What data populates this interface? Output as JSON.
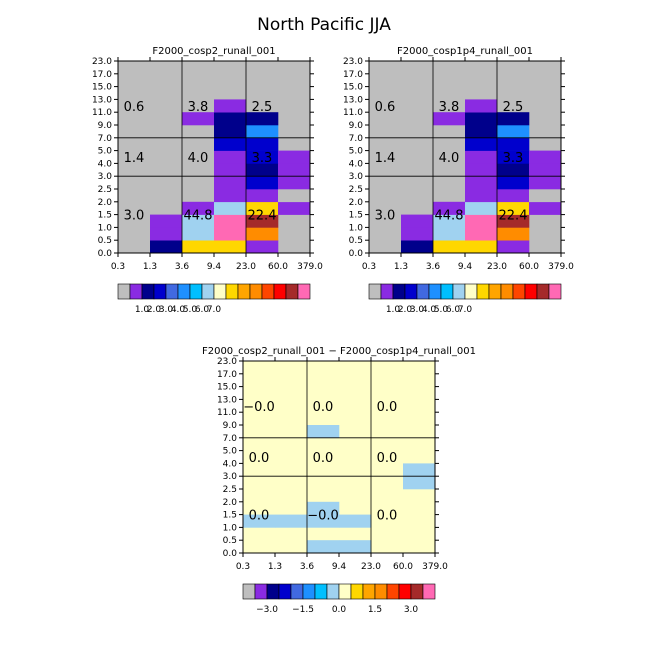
{
  "title": "North Pacific JJA",
  "x_ticks": [
    "0.3",
    "1.3",
    "3.6",
    "9.4",
    "23.0",
    "60.0",
    "379.0"
  ],
  "y_ticks": [
    "0.0",
    "0.5",
    "1.0",
    "1.5",
    "2.0",
    "2.5",
    "3.0",
    "4.0",
    "5.0",
    "7.0",
    "9.0",
    "11.0",
    "13.0",
    "15.0",
    "17.0",
    "23.0"
  ],
  "colors": {
    "background_gray": "#bebebe",
    "diff_background": "#ffffc8",
    "frame": "#000000"
  },
  "colorbar": {
    "bins": [
      "#bebebe",
      "#8a2be2",
      "#00008b",
      "#0000cd",
      "#4169e1",
      "#1e90ff",
      "#00bfff",
      "#a0d2f0",
      "#ffffc8",
      "#ffd700",
      "#ffa500",
      "#ff8c00",
      "#ff4500",
      "#ff0000",
      "#a52a2a",
      "#ff69b4"
    ],
    "labels_main": [
      "1.0",
      "2.0",
      "3.0",
      "4.0",
      "5.0",
      "6.0",
      "7.0"
    ],
    "labels_diff": [
      "−3.0",
      "−1.5",
      "0.0",
      "1.5",
      "3.0"
    ]
  },
  "chart_data": [
    {
      "type": "heatmap",
      "title": "F2000_cosp2_runall_001",
      "x_edges": [
        0.3,
        1.3,
        3.6,
        9.4,
        23.0,
        60.0,
        379.0
      ],
      "y_edges": [
        0.0,
        0.5,
        1.0,
        1.5,
        2.0,
        2.5,
        3.0,
        4.0,
        5.0,
        7.0,
        9.0,
        11.0,
        13.0,
        15.0,
        17.0,
        23.0
      ],
      "cells": [
        {
          "x_bin": 1,
          "y_bin": 0,
          "color": "#00008b"
        },
        {
          "x_bin": 2,
          "y_bin": 0,
          "color": "#ffd700"
        },
        {
          "x_bin": 3,
          "y_bin": 0,
          "color": "#ffd700"
        },
        {
          "x_bin": 4,
          "y_bin": 0,
          "color": "#8a2be2"
        },
        {
          "x_bin": 1,
          "y_bin": 1,
          "color": "#8a2be2"
        },
        {
          "x_bin": 2,
          "y_bin": 1,
          "color": "#a0d2f0"
        },
        {
          "x_bin": 3,
          "y_bin": 1,
          "color": "#ff69b4"
        },
        {
          "x_bin": 4,
          "y_bin": 1,
          "color": "#ff8c00"
        },
        {
          "x_bin": 1,
          "y_bin": 2,
          "color": "#8a2be2"
        },
        {
          "x_bin": 2,
          "y_bin": 2,
          "color": "#a0d2f0"
        },
        {
          "x_bin": 3,
          "y_bin": 2,
          "color": "#ff69b4"
        },
        {
          "x_bin": 4,
          "y_bin": 2,
          "color": "#a52a2a"
        },
        {
          "x_bin": 2,
          "y_bin": 3,
          "color": "#8a2be2"
        },
        {
          "x_bin": 3,
          "y_bin": 3,
          "color": "#a0d2f0"
        },
        {
          "x_bin": 4,
          "y_bin": 3,
          "color": "#ffd700"
        },
        {
          "x_bin": 5,
          "y_bin": 3,
          "color": "#8a2be2"
        },
        {
          "x_bin": 3,
          "y_bin": 4,
          "color": "#8a2be2"
        },
        {
          "x_bin": 4,
          "y_bin": 4,
          "color": "#8a2be2"
        },
        {
          "x_bin": 5,
          "y_bin": 4,
          "color": "#bebebe"
        },
        {
          "x_bin": 3,
          "y_bin": 5,
          "color": "#8a2be2"
        },
        {
          "x_bin": 4,
          "y_bin": 5,
          "color": "#0000cd"
        },
        {
          "x_bin": 5,
          "y_bin": 5,
          "color": "#8a2be2"
        },
        {
          "x_bin": 3,
          "y_bin": 6,
          "color": "#8a2be2"
        },
        {
          "x_bin": 4,
          "y_bin": 6,
          "color": "#00008b"
        },
        {
          "x_bin": 5,
          "y_bin": 6,
          "color": "#8a2be2"
        },
        {
          "x_bin": 3,
          "y_bin": 7,
          "color": "#8a2be2"
        },
        {
          "x_bin": 4,
          "y_bin": 7,
          "color": "#0000cd"
        },
        {
          "x_bin": 5,
          "y_bin": 7,
          "color": "#8a2be2"
        },
        {
          "x_bin": 3,
          "y_bin": 8,
          "color": "#0000cd"
        },
        {
          "x_bin": 4,
          "y_bin": 8,
          "color": "#0000cd"
        },
        {
          "x_bin": 3,
          "y_bin": 9,
          "color": "#00008b"
        },
        {
          "x_bin": 4,
          "y_bin": 9,
          "color": "#1e90ff"
        },
        {
          "x_bin": 2,
          "y_bin": 10,
          "color": "#8a2be2"
        },
        {
          "x_bin": 3,
          "y_bin": 10,
          "color": "#00008b"
        },
        {
          "x_bin": 4,
          "y_bin": 10,
          "color": "#00008b"
        },
        {
          "x_bin": 3,
          "y_bin": 11,
          "color": "#8a2be2"
        }
      ],
      "annotations": [
        {
          "text": "0.6",
          "x": 0.8,
          "y": 12.0
        },
        {
          "text": "3.8",
          "x": 6.5,
          "y": 12.0
        },
        {
          "text": "2.5",
          "x": 41.5,
          "y": 12.0
        },
        {
          "text": "1.4",
          "x": 0.8,
          "y": 4.5
        },
        {
          "text": "4.0",
          "x": 6.5,
          "y": 4.5
        },
        {
          "text": "3.3",
          "x": 41.5,
          "y": 4.5
        },
        {
          "text": "3.0",
          "x": 0.8,
          "y": 1.5
        },
        {
          "text": "44.8",
          "x": 6.5,
          "y": 1.5
        },
        {
          "text": "22.4",
          "x": 41.5,
          "y": 1.5
        }
      ]
    },
    {
      "type": "heatmap",
      "title": "F2000_cosp1p4_runall_001",
      "x_edges": [
        0.3,
        1.3,
        3.6,
        9.4,
        23.0,
        60.0,
        379.0
      ],
      "y_edges": [
        0.0,
        0.5,
        1.0,
        1.5,
        2.0,
        2.5,
        3.0,
        4.0,
        5.0,
        7.0,
        9.0,
        11.0,
        13.0,
        15.0,
        17.0,
        23.0
      ],
      "cells": [
        {
          "x_bin": 1,
          "y_bin": 0,
          "color": "#00008b"
        },
        {
          "x_bin": 2,
          "y_bin": 0,
          "color": "#ffd700"
        },
        {
          "x_bin": 3,
          "y_bin": 0,
          "color": "#ffd700"
        },
        {
          "x_bin": 4,
          "y_bin": 0,
          "color": "#8a2be2"
        },
        {
          "x_bin": 1,
          "y_bin": 1,
          "color": "#8a2be2"
        },
        {
          "x_bin": 2,
          "y_bin": 1,
          "color": "#a0d2f0"
        },
        {
          "x_bin": 3,
          "y_bin": 1,
          "color": "#ff69b4"
        },
        {
          "x_bin": 4,
          "y_bin": 1,
          "color": "#ff8c00"
        },
        {
          "x_bin": 1,
          "y_bin": 2,
          "color": "#8a2be2"
        },
        {
          "x_bin": 2,
          "y_bin": 2,
          "color": "#a0d2f0"
        },
        {
          "x_bin": 3,
          "y_bin": 2,
          "color": "#ff69b4"
        },
        {
          "x_bin": 4,
          "y_bin": 2,
          "color": "#a52a2a"
        },
        {
          "x_bin": 2,
          "y_bin": 3,
          "color": "#8a2be2"
        },
        {
          "x_bin": 3,
          "y_bin": 3,
          "color": "#a0d2f0"
        },
        {
          "x_bin": 4,
          "y_bin": 3,
          "color": "#ffd700"
        },
        {
          "x_bin": 5,
          "y_bin": 3,
          "color": "#8a2be2"
        },
        {
          "x_bin": 3,
          "y_bin": 4,
          "color": "#8a2be2"
        },
        {
          "x_bin": 4,
          "y_bin": 4,
          "color": "#8a2be2"
        },
        {
          "x_bin": 5,
          "y_bin": 4,
          "color": "#bebebe"
        },
        {
          "x_bin": 3,
          "y_bin": 5,
          "color": "#8a2be2"
        },
        {
          "x_bin": 4,
          "y_bin": 5,
          "color": "#0000cd"
        },
        {
          "x_bin": 5,
          "y_bin": 5,
          "color": "#8a2be2"
        },
        {
          "x_bin": 3,
          "y_bin": 6,
          "color": "#8a2be2"
        },
        {
          "x_bin": 4,
          "y_bin": 6,
          "color": "#00008b"
        },
        {
          "x_bin": 5,
          "y_bin": 6,
          "color": "#8a2be2"
        },
        {
          "x_bin": 3,
          "y_bin": 7,
          "color": "#8a2be2"
        },
        {
          "x_bin": 4,
          "y_bin": 7,
          "color": "#0000cd"
        },
        {
          "x_bin": 5,
          "y_bin": 7,
          "color": "#8a2be2"
        },
        {
          "x_bin": 3,
          "y_bin": 8,
          "color": "#0000cd"
        },
        {
          "x_bin": 4,
          "y_bin": 8,
          "color": "#0000cd"
        },
        {
          "x_bin": 3,
          "y_bin": 9,
          "color": "#00008b"
        },
        {
          "x_bin": 4,
          "y_bin": 9,
          "color": "#1e90ff"
        },
        {
          "x_bin": 2,
          "y_bin": 10,
          "color": "#8a2be2"
        },
        {
          "x_bin": 3,
          "y_bin": 10,
          "color": "#00008b"
        },
        {
          "x_bin": 4,
          "y_bin": 10,
          "color": "#00008b"
        },
        {
          "x_bin": 3,
          "y_bin": 11,
          "color": "#8a2be2"
        }
      ],
      "annotations": [
        {
          "text": "0.6",
          "x": 0.8,
          "y": 12.0
        },
        {
          "text": "3.8",
          "x": 6.5,
          "y": 12.0
        },
        {
          "text": "2.5",
          "x": 41.5,
          "y": 12.0
        },
        {
          "text": "1.4",
          "x": 0.8,
          "y": 4.5
        },
        {
          "text": "4.0",
          "x": 6.5,
          "y": 4.5
        },
        {
          "text": "3.3",
          "x": 41.5,
          "y": 4.5
        },
        {
          "text": "3.0",
          "x": 0.8,
          "y": 1.5
        },
        {
          "text": "44.8",
          "x": 6.5,
          "y": 1.5
        },
        {
          "text": "22.4",
          "x": 41.5,
          "y": 1.5
        }
      ]
    },
    {
      "type": "heatmap",
      "title": "F2000_cosp2_runall_001 − F2000_cosp1p4_runall_001",
      "x_edges": [
        0.3,
        1.3,
        3.6,
        9.4,
        23.0,
        60.0,
        379.0
      ],
      "y_edges": [
        0.0,
        0.5,
        1.0,
        1.5,
        2.0,
        2.5,
        3.0,
        4.0,
        5.0,
        7.0,
        9.0,
        11.0,
        13.0,
        15.0,
        17.0,
        23.0
      ],
      "cells": [
        {
          "x_bin": 0,
          "y_bin": 2,
          "color": "#a0d2f0"
        },
        {
          "x_bin": 1,
          "y_bin": 2,
          "color": "#a0d2f0"
        },
        {
          "x_bin": 2,
          "y_bin": 0,
          "color": "#a0d2f0"
        },
        {
          "x_bin": 3,
          "y_bin": 0,
          "color": "#a0d2f0"
        },
        {
          "x_bin": 2,
          "y_bin": 2,
          "color": "#a0d2f0"
        },
        {
          "x_bin": 3,
          "y_bin": 2,
          "color": "#a0d2f0"
        },
        {
          "x_bin": 2,
          "y_bin": 3,
          "color": "#a0d2f0"
        },
        {
          "x_bin": 5,
          "y_bin": 5,
          "color": "#a0d2f0"
        },
        {
          "x_bin": 5,
          "y_bin": 6,
          "color": "#a0d2f0"
        },
        {
          "x_bin": 2,
          "y_bin": 9,
          "color": "#a0d2f0"
        }
      ],
      "annotations": [
        {
          "text": "−0.0",
          "x": 0.8,
          "y": 12.0
        },
        {
          "text": "0.0",
          "x": 6.5,
          "y": 12.0
        },
        {
          "text": "0.0",
          "x": 41.5,
          "y": 12.0
        },
        {
          "text": "0.0",
          "x": 0.8,
          "y": 4.5
        },
        {
          "text": "0.0",
          "x": 6.5,
          "y": 4.5
        },
        {
          "text": "0.0",
          "x": 41.5,
          "y": 4.5
        },
        {
          "text": "0.0",
          "x": 0.8,
          "y": 1.5
        },
        {
          "text": "−0.0",
          "x": 6.5,
          "y": 1.5
        },
        {
          "text": "0.0",
          "x": 41.5,
          "y": 1.5
        }
      ]
    }
  ]
}
